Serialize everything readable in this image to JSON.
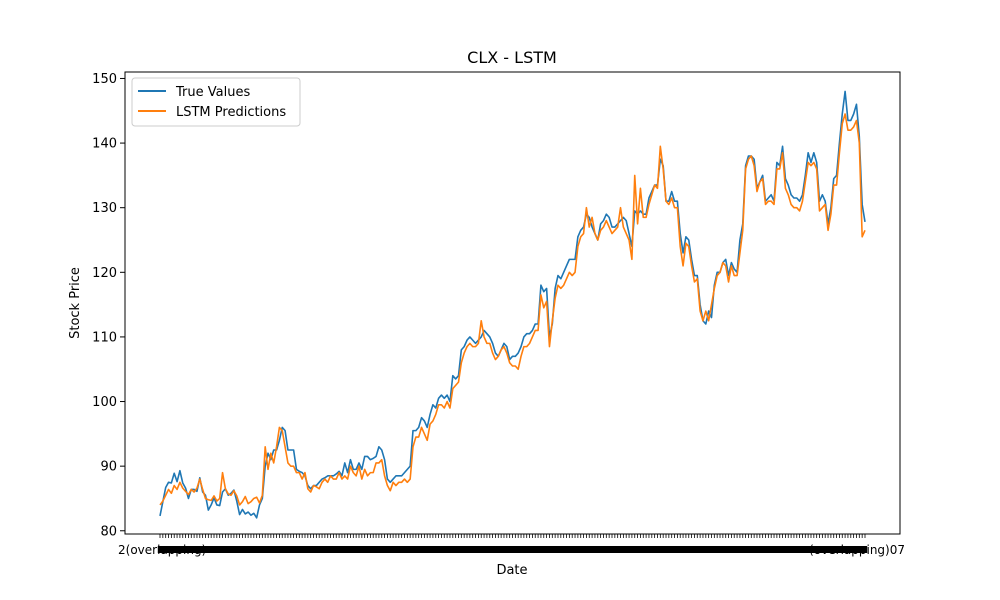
{
  "chart_data": {
    "type": "line",
    "title": "CLX - LSTM",
    "xlabel": "Date",
    "ylabel": "Stock Price",
    "ylim": [
      79.5,
      151
    ],
    "yticks": [
      80,
      90,
      100,
      110,
      120,
      130,
      140,
      150
    ],
    "x_tick_labels_note": "x-axis has a dense, overlapping row of date tick labels that are not legible",
    "x_tick_label_edges": {
      "first": "2(overlapping)",
      "last": "(overlapping)07"
    },
    "legend": {
      "placement": "top-left"
    },
    "grid": false,
    "colors": {
      "true_values": "#1f77b4",
      "lstm_predictions": "#ff7f0e"
    },
    "series": [
      {
        "name": "True Values",
        "values": [
          82.3,
          84.5,
          86.7,
          87.5,
          87.4,
          88.9,
          87.6,
          89.3,
          87.4,
          86.6,
          85.0,
          86.4,
          86.4,
          86.1,
          88.2,
          86.0,
          85.5,
          83.2,
          84.0,
          85.1,
          84.0,
          83.9,
          86.0,
          86.5,
          85.5,
          85.8,
          86.3,
          84.6,
          82.5,
          83.3,
          82.6,
          82.9,
          82.4,
          82.7,
          82.0,
          84.0,
          85.0,
          90.0,
          92.0,
          91.0,
          92.5,
          92.5,
          94.0,
          96.0,
          95.5,
          92.5,
          92.5,
          92.5,
          89.5,
          89.2,
          89.0,
          88.5,
          87.0,
          86.5,
          87.0,
          87.0,
          87.5,
          88.0,
          88.2,
          88.5,
          88.5,
          88.5,
          88.8,
          89.2,
          88.5,
          90.5,
          89.0,
          91.0,
          89.5,
          89.5,
          90.5,
          89.5,
          91.5,
          91.5,
          91.0,
          91.2,
          91.5,
          93.0,
          92.5,
          91.0,
          88.0,
          87.5,
          88.0,
          88.5,
          88.5,
          88.5,
          89.0,
          89.5,
          90.0,
          95.5,
          95.5,
          96.0,
          97.5,
          97.0,
          96.0,
          98.0,
          99.5,
          99.0,
          100.5,
          101.0,
          100.5,
          101.0,
          100.0,
          104.0,
          103.5,
          104.0,
          108.0,
          108.5,
          109.5,
          110.0,
          109.5,
          109.0,
          109.5,
          110.0,
          111.0,
          110.5,
          110.0,
          109.0,
          107.5,
          107.0,
          108.0,
          109.0,
          108.5,
          106.5,
          107.0,
          107.0,
          107.5,
          108.5,
          110.0,
          110.5,
          110.5,
          111.0,
          112.0,
          112.0,
          118.0,
          117.0,
          117.5,
          110.0,
          112.0,
          117.5,
          119.5,
          119.0,
          120.0,
          121.0,
          122.0,
          122.0,
          122.0,
          125.5,
          126.5,
          127.0,
          129.0,
          128.5,
          127.0,
          126.0,
          125.0,
          127.5,
          128.0,
          129.0,
          128.5,
          127.0,
          127.0,
          127.5,
          128.0,
          128.5,
          128.0,
          126.0,
          124.0,
          129.5,
          129.0,
          129.5,
          129.0,
          129.0,
          131.5,
          132.5,
          133.5,
          133.5,
          137.5,
          136.5,
          131.0,
          131.0,
          132.5,
          131.0,
          131.0,
          126.0,
          123.0,
          125.5,
          125.0,
          122.0,
          119.5,
          119.5,
          115.0,
          112.5,
          112.0,
          114.0,
          113.0,
          118.0,
          120.0,
          120.0,
          121.5,
          122.0,
          119.5,
          121.5,
          120.5,
          120.0,
          125.0,
          127.5,
          136.5,
          138.0,
          138.0,
          137.5,
          133.0,
          134.0,
          135.0,
          131.0,
          131.5,
          132.0,
          131.0,
          137.0,
          136.5,
          139.5,
          134.5,
          133.5,
          132.0,
          131.5,
          131.5,
          131.0,
          132.0,
          135.0,
          138.5,
          137.0,
          138.5,
          137.0,
          131.0,
          132.0,
          131.0,
          127.5,
          130.0,
          134.5,
          135.0,
          140.0,
          144.5,
          148.0,
          143.5,
          143.5,
          144.5,
          146.0,
          141.0,
          130.5,
          127.8
        ]
      },
      {
        "name": "LSTM Predictions",
        "values": [
          84.0,
          84.6,
          85.5,
          86.4,
          85.8,
          87.0,
          86.4,
          87.5,
          86.6,
          86.1,
          85.6,
          86.4,
          86.0,
          86.6,
          88.0,
          86.4,
          85.0,
          84.8,
          84.7,
          85.4,
          84.6,
          85.0,
          89.0,
          86.5,
          85.7,
          85.5,
          86.2,
          85.4,
          84.0,
          84.5,
          85.3,
          84.2,
          84.5,
          85.0,
          85.2,
          84.3,
          85.5,
          93.0,
          89.5,
          92.0,
          90.5,
          93.0,
          96.0,
          95.5,
          93.0,
          90.5,
          90.0,
          90.0,
          89.0,
          89.0,
          88.0,
          89.0,
          86.5,
          86.0,
          87.0,
          86.8,
          86.5,
          87.5,
          88.0,
          87.5,
          88.5,
          88.0,
          88.0,
          89.0,
          88.0,
          88.5,
          88.0,
          90.0,
          89.0,
          88.5,
          90.0,
          88.0,
          89.5,
          88.5,
          89.0,
          89.0,
          90.5,
          90.5,
          91.0,
          88.5,
          87.0,
          86.2,
          87.5,
          87.0,
          87.5,
          87.5,
          88.0,
          87.5,
          88.0,
          93.0,
          94.5,
          94.5,
          96.0,
          95.0,
          94.0,
          96.5,
          97.0,
          98.0,
          99.5,
          99.5,
          99.0,
          100.0,
          99.0,
          102.0,
          102.5,
          103.0,
          106.0,
          107.5,
          108.5,
          109.0,
          108.5,
          108.5,
          109.0,
          112.5,
          110.0,
          109.0,
          109.0,
          107.5,
          106.5,
          107.0,
          108.0,
          108.5,
          107.5,
          106.0,
          105.5,
          105.5,
          105.0,
          107.0,
          108.5,
          108.5,
          109.0,
          110.0,
          111.0,
          111.0,
          116.5,
          114.5,
          115.5,
          108.5,
          112.5,
          116.0,
          118.0,
          117.5,
          118.0,
          119.0,
          120.0,
          119.5,
          120.0,
          124.0,
          125.5,
          126.0,
          130.0,
          127.0,
          128.5,
          126.0,
          125.0,
          126.5,
          127.0,
          128.0,
          127.0,
          126.0,
          126.5,
          127.0,
          130.0,
          127.0,
          126.0,
          125.0,
          122.0,
          135.0,
          127.5,
          133.0,
          128.5,
          128.5,
          130.5,
          132.0,
          133.5,
          133.0,
          139.5,
          136.0,
          131.0,
          130.5,
          131.5,
          130.0,
          130.0,
          124.0,
          121.0,
          124.5,
          124.0,
          121.0,
          118.5,
          119.0,
          114.0,
          112.5,
          114.0,
          112.5,
          115.0,
          117.5,
          119.5,
          120.0,
          121.5,
          121.0,
          118.5,
          121.0,
          119.5,
          119.5,
          123.0,
          126.5,
          136.0,
          137.5,
          138.0,
          136.5,
          132.5,
          134.0,
          134.5,
          130.5,
          131.0,
          131.0,
          130.5,
          136.0,
          136.0,
          138.5,
          133.0,
          132.0,
          130.5,
          130.0,
          130.0,
          129.5,
          131.0,
          134.0,
          137.0,
          136.5,
          137.0,
          136.0,
          129.5,
          130.0,
          130.5,
          126.5,
          129.0,
          133.5,
          133.5,
          138.5,
          143.0,
          144.5,
          142.0,
          142.0,
          142.5,
          143.5,
          140.0,
          125.5,
          126.5
        ]
      }
    ]
  }
}
